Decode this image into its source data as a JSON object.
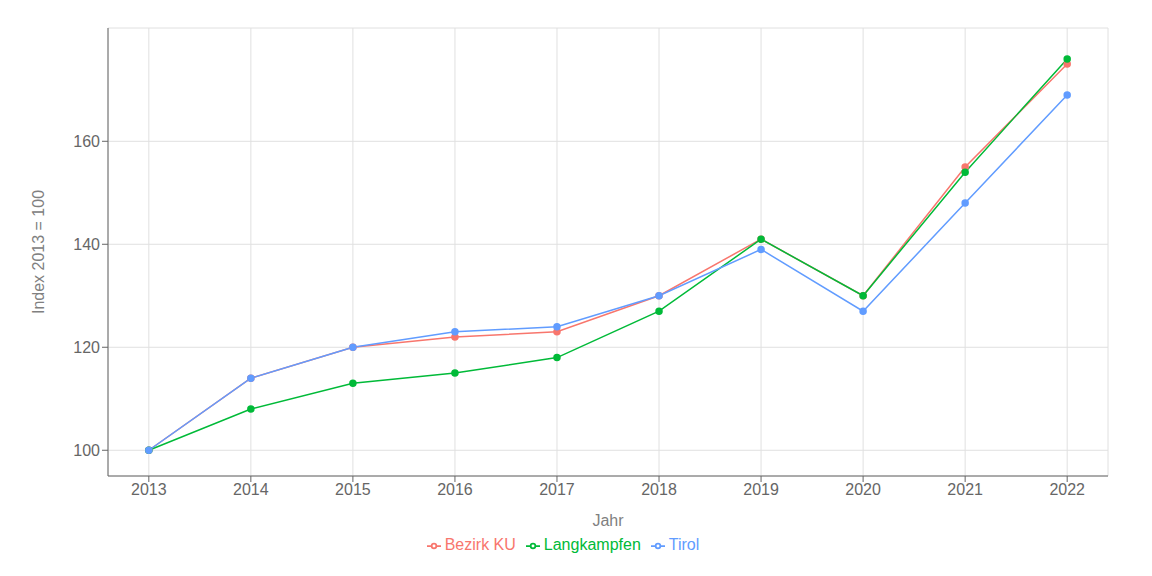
{
  "chart_data": {
    "type": "line",
    "xlabel": "Jahr",
    "ylabel": "Index  2013 = 100",
    "x": [
      2013,
      2014,
      2015,
      2016,
      2017,
      2018,
      2019,
      2020,
      2021,
      2022
    ],
    "series": [
      {
        "name": "Bezirk KU",
        "color": "#F8766D",
        "values": [
          100,
          114,
          120,
          122,
          123,
          130,
          141,
          130,
          155,
          175
        ]
      },
      {
        "name": "Langkampfen",
        "color": "#00BA38",
        "values": [
          100,
          108,
          113,
          115,
          118,
          127,
          141,
          130,
          154,
          176
        ]
      },
      {
        "name": "Tirol",
        "color": "#619CFF",
        "values": [
          100,
          114,
          120,
          123,
          124,
          130,
          139,
          127,
          148,
          169
        ]
      }
    ],
    "xlim": [
      2012.6,
      2022.4
    ],
    "xticks": [
      2013,
      2014,
      2015,
      2016,
      2017,
      2018,
      2019,
      2020,
      2021,
      2022
    ],
    "ylim": [
      95,
      182
    ],
    "yticks": [
      100,
      120,
      140,
      160
    ],
    "grid": true,
    "legend": "bottom",
    "marker": "circle"
  }
}
